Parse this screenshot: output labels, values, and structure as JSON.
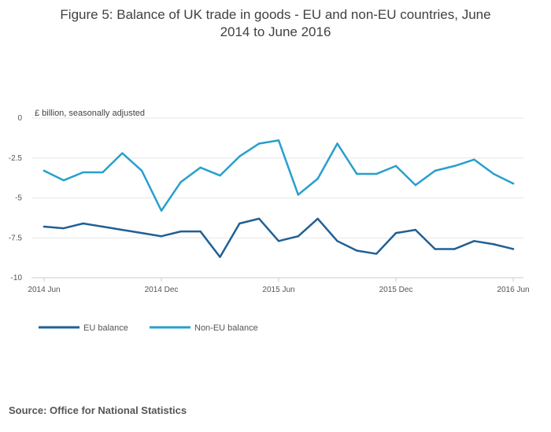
{
  "chart_data": {
    "type": "line",
    "title_lines": [
      "Figure 5: Balance of UK trade in goods - EU and non-EU countries, June",
      "2014 to June 2016"
    ],
    "unit_label": "£ billion, seasonally adjusted",
    "ylim": [
      -10,
      0
    ],
    "y_ticks": [
      0,
      -2.5,
      -5,
      -7.5,
      -10
    ],
    "y_tick_labels": [
      "0",
      "-2.5",
      "-5",
      "-7.5",
      "-10"
    ],
    "x": [
      "2014 Jun",
      "2014 Jul",
      "2014 Aug",
      "2014 Sep",
      "2014 Oct",
      "2014 Nov",
      "2014 Dec",
      "2015 Jan",
      "2015 Feb",
      "2015 Mar",
      "2015 Apr",
      "2015 May",
      "2015 Jun",
      "2015 Jul",
      "2015 Aug",
      "2015 Sep",
      "2015 Oct",
      "2015 Nov",
      "2015 Dec",
      "2016 Jan",
      "2016 Feb",
      "2016 Mar",
      "2016 Apr",
      "2016 May",
      "2016 Jun"
    ],
    "x_tick_labels": [
      "2014 Jun",
      "2014 Dec",
      "2015 Jun",
      "2015 Dec",
      "2016 Jun"
    ],
    "x_tick_every": 6,
    "grid": true,
    "legend_position": "bottom-left",
    "series": [
      {
        "name": "EU balance",
        "color": "#206095",
        "values": [
          -6.8,
          -6.9,
          -6.6,
          -6.8,
          -7.0,
          -7.2,
          -7.4,
          -7.1,
          -7.1,
          -8.7,
          -6.6,
          -6.3,
          -7.7,
          -7.4,
          -6.3,
          -7.7,
          -8.3,
          -8.5,
          -7.2,
          -7.0,
          -8.2,
          -8.2,
          -7.7,
          -7.9,
          -8.2
        ]
      },
      {
        "name": "Non-EU balance",
        "color": "#27A0CC",
        "values": [
          -3.3,
          -3.9,
          -3.4,
          -3.4,
          -2.2,
          -3.3,
          -5.8,
          -4.0,
          -3.1,
          -3.6,
          -2.4,
          -1.6,
          -1.4,
          -4.8,
          -3.8,
          -1.6,
          -3.5,
          -3.5,
          -3.0,
          -4.2,
          -3.3,
          -3.0,
          -2.6,
          -3.5,
          -4.1
        ]
      }
    ],
    "source": "Source: Office for National Statistics"
  }
}
